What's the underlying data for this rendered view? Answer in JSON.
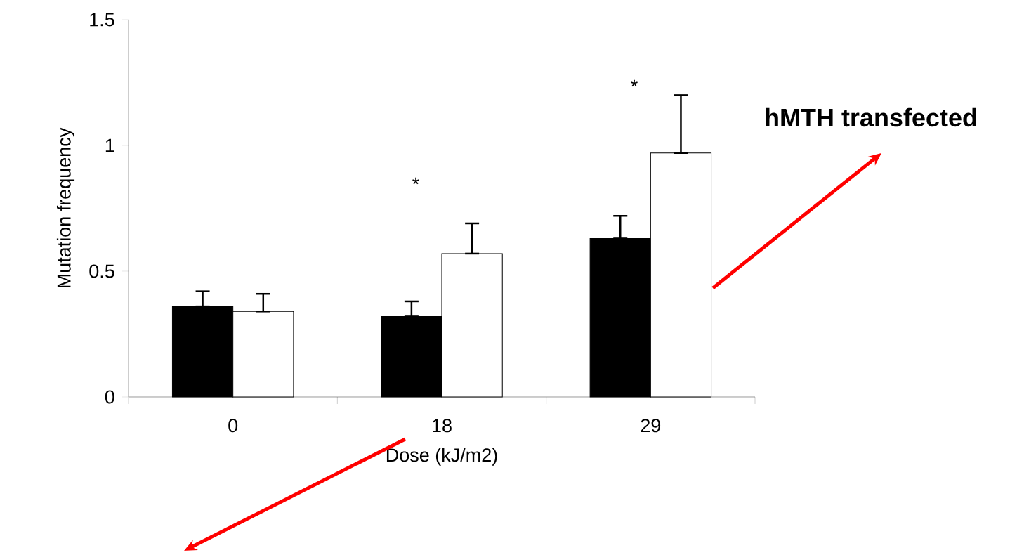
{
  "chart_data": {
    "type": "bar",
    "xlabel": "Dose (kJ/m2)",
    "ylabel": "Mutation frequency",
    "categories": [
      "0",
      "18",
      "29"
    ],
    "series": [
      {
        "color": "#000000",
        "values": [
          0.36,
          0.32,
          0.63
        ],
        "errors": [
          [
            0.36,
            0.42
          ],
          [
            0.32,
            0.38
          ],
          [
            0.63,
            0.72
          ]
        ]
      },
      {
        "color": "#ffffff",
        "values": [
          0.34,
          0.57,
          0.97
        ],
        "errors": [
          [
            0.34,
            0.41
          ],
          [
            0.57,
            0.69
          ],
          [
            0.97,
            1.2
          ]
        ]
      }
    ],
    "ylim": [
      0,
      1.5
    ],
    "yticks": [
      0,
      0.5,
      1,
      1.5
    ],
    "annotations": [
      "*",
      "*",
      "hMTH transfected"
    ]
  }
}
